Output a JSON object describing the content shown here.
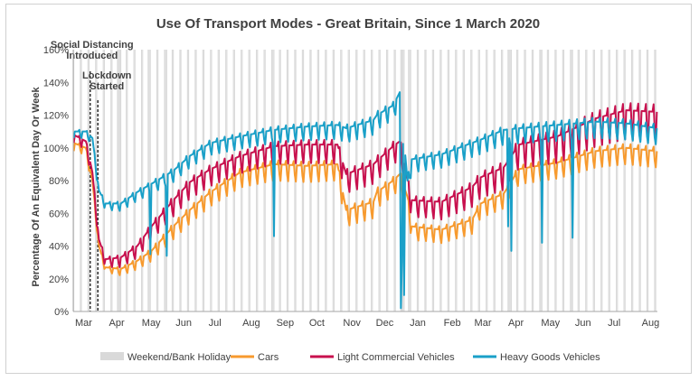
{
  "chart_data": {
    "type": "line",
    "title": "Use Of Transport Modes - Great Britain, Since 1 March 2020",
    "ylabel": "Percentage Of An Equivalent Day Or Week",
    "xlabel": "",
    "ylim": [
      0,
      160
    ],
    "yticks": [
      "0%",
      "20%",
      "40%",
      "60%",
      "80%",
      "100%",
      "120%",
      "140%",
      "160%"
    ],
    "yticks_values": [
      0,
      20,
      40,
      60,
      80,
      100,
      120,
      140,
      160
    ],
    "xticks": [
      "Mar",
      "Apr",
      "May",
      "Jun",
      "Jul",
      "Aug",
      "Sep",
      "Oct",
      "Nov",
      "Dec",
      "Jan",
      "Feb",
      "Mar",
      "Apr",
      "May",
      "Jun",
      "Jul",
      "Aug"
    ],
    "xticks_dates": [
      "2020-03-01",
      "2020-04-01",
      "2020-05-01",
      "2020-06-01",
      "2020-07-01",
      "2020-08-01",
      "2020-09-01",
      "2020-10-01",
      "2020-11-01",
      "2020-12-01",
      "2021-01-01",
      "2021-02-01",
      "2021-03-01",
      "2021-04-01",
      "2021-05-01",
      "2021-06-01",
      "2021-07-01",
      "2021-08-01"
    ],
    "x_range": [
      "2020-03-01",
      "2021-08-16"
    ],
    "grid": false,
    "legend_position": "bottom",
    "shading": {
      "name": "Weekend/Bank Holiday",
      "color": "#d9d9d9",
      "weekends": "every Saturday and Sunday",
      "bank_holidays": [
        "2020-04-10",
        "2020-04-13",
        "2020-05-08",
        "2020-05-25",
        "2020-08-31",
        "2020-12-25",
        "2020-12-28",
        "2021-01-01",
        "2021-04-02",
        "2021-04-05",
        "2021-05-03",
        "2021-05-31"
      ]
    },
    "annotations": [
      {
        "label_lines": [
          "Social Distancing",
          "Introduced"
        ],
        "date": "2020-03-16"
      },
      {
        "label_lines": [
          "Lockdown",
          "Started"
        ],
        "date": "2020-03-23"
      }
    ],
    "series": [
      {
        "name": "Cars",
        "color": "#f79a2e",
        "weekday_level": [
          [
            "2020-03-01",
            103
          ],
          [
            "2020-03-12",
            100
          ],
          [
            "2020-03-18",
            80
          ],
          [
            "2020-03-24",
            40
          ],
          [
            "2020-03-30",
            27
          ],
          [
            "2020-04-13",
            26
          ],
          [
            "2020-04-28",
            31
          ],
          [
            "2020-05-11",
            37
          ],
          [
            "2020-05-31",
            52
          ],
          [
            "2020-06-15",
            62
          ],
          [
            "2020-07-04",
            73
          ],
          [
            "2020-07-31",
            85
          ],
          [
            "2020-08-31",
            90
          ],
          [
            "2020-09-30",
            89
          ],
          [
            "2020-10-28",
            90
          ],
          [
            "2020-11-05",
            62
          ],
          [
            "2020-11-30",
            67
          ],
          [
            "2020-12-03",
            73
          ],
          [
            "2020-12-18",
            80
          ],
          [
            "2020-12-24",
            84
          ],
          [
            "2020-12-31",
            70
          ],
          [
            "2021-01-04",
            52
          ],
          [
            "2021-01-31",
            50
          ],
          [
            "2021-02-28",
            56
          ],
          [
            "2021-03-08",
            66
          ],
          [
            "2021-03-29",
            72
          ],
          [
            "2021-04-12",
            87
          ],
          [
            "2021-05-17",
            91
          ],
          [
            "2021-06-21",
            98
          ],
          [
            "2021-07-19",
            100
          ],
          [
            "2021-08-16",
            98
          ]
        ],
        "weekend_dip": [
          [
            "2020-03-01",
            5
          ],
          [
            "2020-04-01",
            3
          ],
          [
            "2020-06-01",
            8
          ],
          [
            "2020-09-01",
            10
          ],
          [
            "2020-12-01",
            10
          ],
          [
            "2021-01-15",
            8
          ],
          [
            "2021-06-01",
            10
          ],
          [
            "2021-08-16",
            10
          ]
        ],
        "outliers": []
      },
      {
        "name": "Light Commercial Vehicles",
        "color": "#c8104e",
        "weekday_level": [
          [
            "2020-03-01",
            108
          ],
          [
            "2020-03-12",
            104
          ],
          [
            "2020-03-18",
            85
          ],
          [
            "2020-03-24",
            44
          ],
          [
            "2020-03-30",
            32
          ],
          [
            "2020-04-13",
            33
          ],
          [
            "2020-04-28",
            40
          ],
          [
            "2020-05-11",
            52
          ],
          [
            "2020-05-31",
            68
          ],
          [
            "2020-06-15",
            79
          ],
          [
            "2020-07-04",
            87
          ],
          [
            "2020-07-31",
            95
          ],
          [
            "2020-08-31",
            101
          ],
          [
            "2020-09-30",
            102
          ],
          [
            "2020-10-28",
            102
          ],
          [
            "2020-11-05",
            84
          ],
          [
            "2020-11-30",
            90
          ],
          [
            "2020-12-03",
            92
          ],
          [
            "2020-12-18",
            101
          ],
          [
            "2020-12-24",
            104
          ],
          [
            "2020-12-31",
            80
          ],
          [
            "2021-01-04",
            68
          ],
          [
            "2021-01-31",
            67
          ],
          [
            "2021-02-28",
            76
          ],
          [
            "2021-03-08",
            82
          ],
          [
            "2021-03-29",
            88
          ],
          [
            "2021-04-12",
            102
          ],
          [
            "2021-05-17",
            107
          ],
          [
            "2021-06-21",
            118
          ],
          [
            "2021-07-19",
            123
          ],
          [
            "2021-08-16",
            122
          ]
        ],
        "weekend_dip": [
          [
            "2020-03-01",
            5
          ],
          [
            "2020-04-01",
            5
          ],
          [
            "2020-06-01",
            10
          ],
          [
            "2020-09-01",
            11
          ],
          [
            "2020-12-01",
            12
          ],
          [
            "2021-01-15",
            10
          ],
          [
            "2021-06-01",
            17
          ],
          [
            "2021-08-16",
            18
          ]
        ],
        "outliers": []
      },
      {
        "name": "Heavy Goods Vehicles",
        "color": "#1aa0c8",
        "weekday_level": [
          [
            "2020-03-01",
            110
          ],
          [
            "2020-03-12",
            110
          ],
          [
            "2020-03-18",
            106
          ],
          [
            "2020-03-24",
            74
          ],
          [
            "2020-03-30",
            66
          ],
          [
            "2020-04-13",
            66
          ],
          [
            "2020-04-28",
            73
          ],
          [
            "2020-05-11",
            78
          ],
          [
            "2020-05-31",
            86
          ],
          [
            "2020-06-15",
            95
          ],
          [
            "2020-07-04",
            103
          ],
          [
            "2020-07-31",
            107
          ],
          [
            "2020-08-31",
            111
          ],
          [
            "2020-09-30",
            113
          ],
          [
            "2020-10-28",
            114
          ],
          [
            "2020-11-05",
            112
          ],
          [
            "2020-11-30",
            117
          ],
          [
            "2020-12-03",
            120
          ],
          [
            "2020-12-18",
            126
          ],
          [
            "2020-12-24",
            134
          ],
          [
            "2020-12-31",
            80
          ],
          [
            "2021-01-04",
            93
          ],
          [
            "2021-01-31",
            96
          ],
          [
            "2021-02-28",
            103
          ],
          [
            "2021-03-08",
            105
          ],
          [
            "2021-03-29",
            111
          ],
          [
            "2021-04-12",
            112
          ],
          [
            "2021-05-17",
            114
          ],
          [
            "2021-06-21",
            116
          ],
          [
            "2021-07-19",
            115
          ],
          [
            "2021-08-16",
            112
          ]
        ],
        "weekend_dip": [
          [
            "2020-03-01",
            4
          ],
          [
            "2020-04-01",
            4
          ],
          [
            "2020-06-01",
            7
          ],
          [
            "2020-09-01",
            8
          ],
          [
            "2020-12-01",
            9
          ],
          [
            "2021-01-15",
            8
          ],
          [
            "2021-06-01",
            10
          ],
          [
            "2021-08-16",
            10
          ]
        ],
        "outliers": [
          [
            "2020-05-10",
            35
          ],
          [
            "2020-05-25",
            34
          ],
          [
            "2020-08-31",
            46
          ],
          [
            "2020-12-25",
            2
          ],
          [
            "2020-12-26",
            30
          ],
          [
            "2020-12-28",
            10
          ],
          [
            "2021-04-02",
            52
          ],
          [
            "2021-04-05",
            37
          ],
          [
            "2021-05-03",
            42
          ],
          [
            "2021-05-31",
            45
          ]
        ]
      }
    ]
  }
}
